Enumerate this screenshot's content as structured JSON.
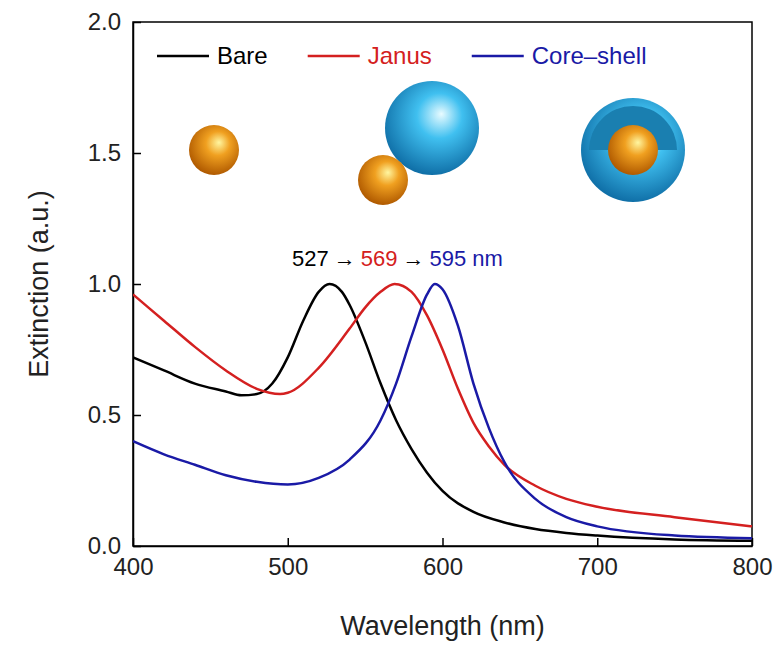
{
  "chart_data": {
    "type": "line",
    "x_label": "Wavelength (nm)",
    "y_label": "Extinction (a.u.)",
    "annotation": [
      "527",
      "→",
      "569",
      "→",
      "595 nm"
    ],
    "legend": "top",
    "xlim": [
      400,
      800
    ],
    "xticks": [
      400,
      500,
      600,
      700,
      800
    ],
    "ylim": [
      0,
      2
    ],
    "yticks": [
      {
        "value": 0,
        "label": "0.0"
      },
      {
        "value": 0.5,
        "label": "0.5"
      },
      {
        "value": 1,
        "label": "1.0"
      },
      {
        "value": 1.5,
        "label": "1.5"
      },
      {
        "value": 2,
        "label": "2.0"
      }
    ],
    "series": [
      {
        "name": "Bare",
        "color": "#000000",
        "x": [
          400,
          420,
          440,
          460,
          470,
          480,
          490,
          500,
          510,
          520,
          527,
          535,
          540,
          550,
          560,
          570,
          580,
          590,
          600,
          620,
          640,
          660,
          680,
          700,
          750,
          800
        ],
        "values": [
          0.72,
          0.67,
          0.62,
          0.59,
          0.575,
          0.58,
          0.62,
          0.72,
          0.86,
          0.97,
          1.0,
          0.97,
          0.92,
          0.78,
          0.62,
          0.48,
          0.37,
          0.28,
          0.21,
          0.13,
          0.09,
          0.065,
          0.05,
          0.04,
          0.025,
          0.02
        ]
      },
      {
        "name": "Janus",
        "color": "#d42020",
        "x": [
          400,
          420,
          440,
          460,
          480,
          495,
          500,
          520,
          540,
          550,
          560,
          569,
          580,
          590,
          600,
          610,
          620,
          630,
          640,
          660,
          680,
          700,
          750,
          800
        ],
        "values": [
          0.96,
          0.86,
          0.76,
          0.67,
          0.6,
          0.58,
          0.585,
          0.68,
          0.83,
          0.91,
          0.97,
          1.0,
          0.97,
          0.88,
          0.75,
          0.6,
          0.47,
          0.38,
          0.31,
          0.23,
          0.18,
          0.15,
          0.11,
          0.075
        ]
      },
      {
        "name": "Core–shell",
        "color": "#1a1aa6",
        "x": [
          400,
          420,
          440,
          460,
          480,
          500,
          520,
          540,
          560,
          570,
          580,
          590,
          595,
          600,
          610,
          620,
          630,
          640,
          660,
          680,
          700,
          750,
          800
        ],
        "values": [
          0.4,
          0.35,
          0.31,
          0.27,
          0.245,
          0.235,
          0.26,
          0.33,
          0.48,
          0.62,
          0.8,
          0.96,
          1.0,
          0.98,
          0.84,
          0.62,
          0.45,
          0.32,
          0.18,
          0.11,
          0.075,
          0.04,
          0.03
        ]
      }
    ]
  }
}
